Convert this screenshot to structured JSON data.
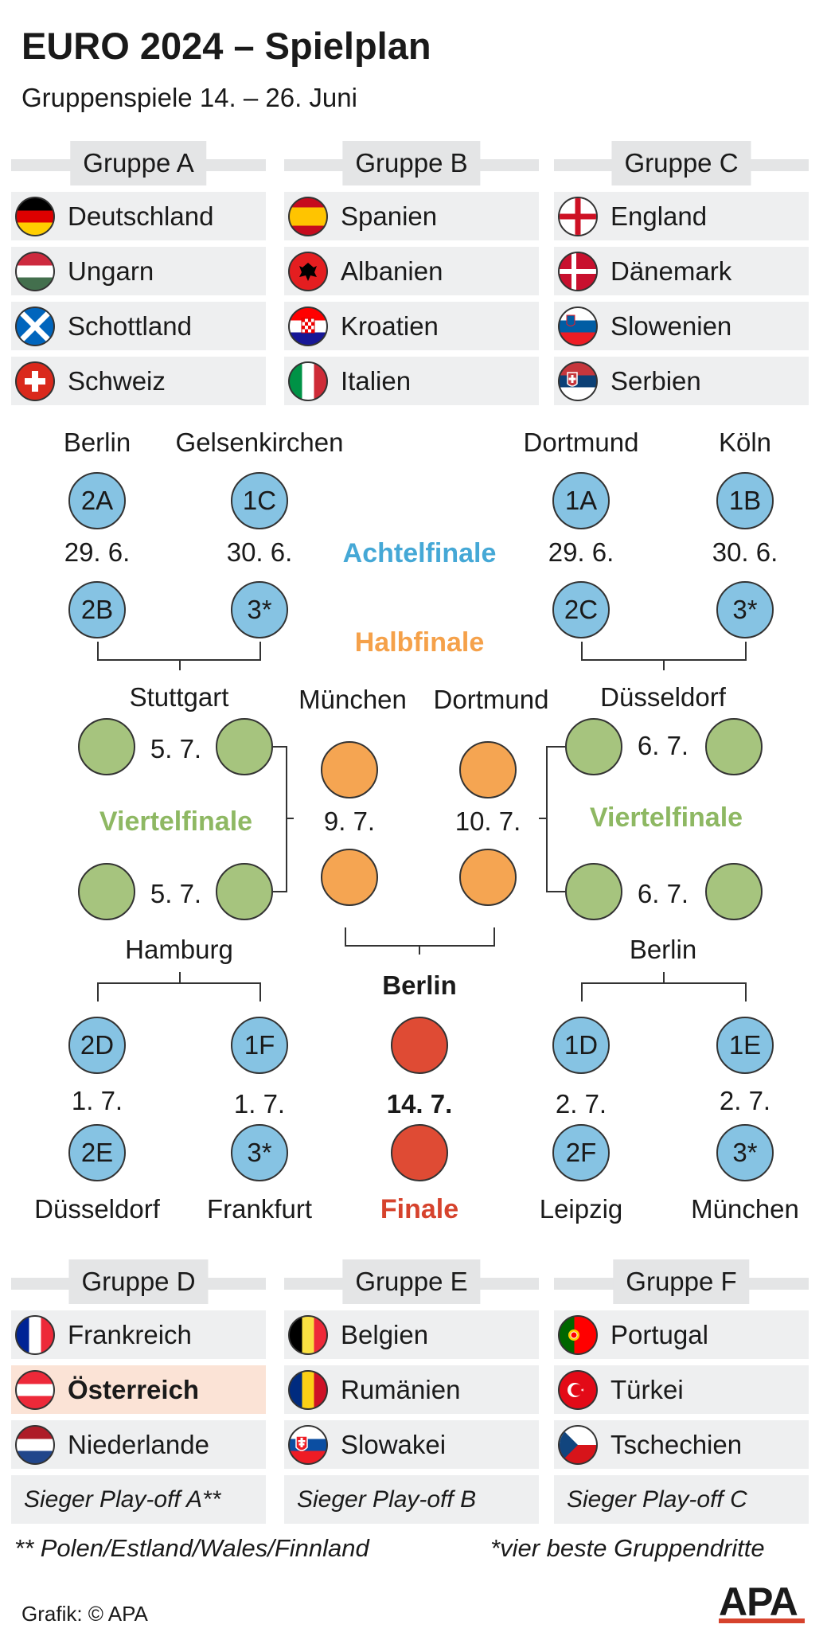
{
  "title": "EURO 2024 – Spielplan",
  "subtitle": "Gruppenspiele 14. – 26. Juni",
  "groups_top": [
    {
      "name": "Gruppe A",
      "teams": [
        "Deutschland",
        "Ungarn",
        "Schottland",
        "Schweiz"
      ]
    },
    {
      "name": "Gruppe B",
      "teams": [
        "Spanien",
        "Albanien",
        "Kroatien",
        "Italien"
      ]
    },
    {
      "name": "Gruppe C",
      "teams": [
        "England",
        "Dänemark",
        "Slowenien",
        "Serbien"
      ]
    }
  ],
  "groups_bottom": [
    {
      "name": "Gruppe D",
      "teams": [
        "Frankreich",
        "Österreich",
        "Niederlande"
      ],
      "playoff": "Sieger Play-off A**"
    },
    {
      "name": "Gruppe E",
      "teams": [
        "Belgien",
        "Rumänien",
        "Slowakei"
      ],
      "playoff": "Sieger Play-off B"
    },
    {
      "name": "Gruppe F",
      "teams": [
        "Portugal",
        "Türkei",
        "Tschechien"
      ],
      "playoff": "Sieger Play-off C"
    }
  ],
  "stages": {
    "round16": "Achtelfinale",
    "semi": "Halbfinale",
    "quarter_left": "Viertelfinale",
    "quarter_right": "Viertelfinale",
    "final": "Finale"
  },
  "colors": {
    "round16": "#45a8d6",
    "quarter": "#8eb863",
    "semi": "#f5a14a",
    "final": "#d6432d",
    "highlight_row": "#fbe3d6"
  },
  "r16_top": {
    "cities": [
      "Berlin",
      "Gelsenkirchen",
      "Dortmund",
      "Köln"
    ],
    "top_labels": [
      "2A",
      "1C",
      "1A",
      "1B"
    ],
    "dates": [
      "29. 6.",
      "30. 6.",
      "29. 6.",
      "30. 6."
    ],
    "bottom_labels": [
      "2B",
      "3*",
      "2C",
      "3*"
    ]
  },
  "r16_bottom": {
    "top_labels": [
      "2D",
      "1F",
      "1D",
      "1E"
    ],
    "dates": [
      "1. 7.",
      "1. 7.",
      "2. 7.",
      "2. 7."
    ],
    "bottom_labels": [
      "2E",
      "3*",
      "2F",
      "3*"
    ],
    "cities": [
      "Düsseldorf",
      "Frankfurt",
      "Leipzig",
      "München"
    ]
  },
  "quarter": {
    "city_top_left": "Stuttgart",
    "city_top_right": "Düsseldorf",
    "city_bottom_left": "Hamburg",
    "city_bottom_right": "Berlin",
    "date_left_top": "5. 7.",
    "date_left_bottom": "5. 7.",
    "date_right_top": "6. 7.",
    "date_right_bottom": "6. 7."
  },
  "semi": {
    "city_left": "München",
    "city_right": "Dortmund",
    "date_left": "9. 7.",
    "date_right": "10. 7."
  },
  "final": {
    "city": "Berlin",
    "date": "14. 7."
  },
  "footnotes": {
    "left": "** Polen/Estland/Wales/Finnland",
    "right": "*vier beste Gruppendritte"
  },
  "credit": "Grafik: © APA",
  "logo": "APA"
}
